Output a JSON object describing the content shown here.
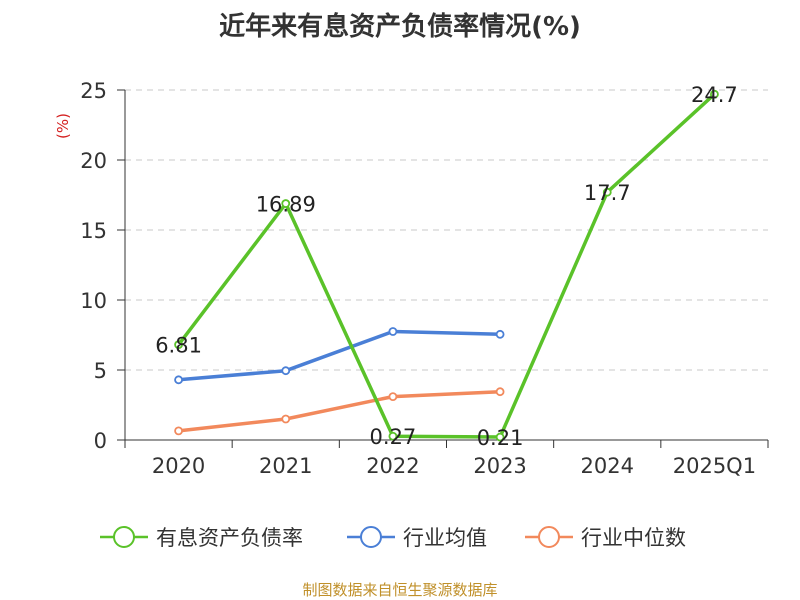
{
  "title": "近年来有息资产负债率情况(%)",
  "source": "制图数据来自恒生聚源数据库",
  "chart_data": {
    "type": "line",
    "title": "近年来有息资产负债率情况(%)",
    "ylabel": "(%)",
    "xlabel": "",
    "categories": [
      "2020",
      "2021",
      "2022",
      "2023",
      "2024",
      "2025Q1"
    ],
    "ylim": [
      0,
      25
    ],
    "yticks": [
      0,
      5,
      10,
      15,
      20,
      25
    ],
    "grid": true,
    "legend_position": "bottom",
    "series": [
      {
        "name": "有息资产负债率",
        "color": "#5ac229",
        "values": [
          6.81,
          16.89,
          0.27,
          0.21,
          17.7,
          24.7
        ],
        "labels": [
          "6.81",
          "16.89",
          "0.27",
          "0.21",
          "17.7",
          "24.7"
        ]
      },
      {
        "name": "行业均值",
        "color": "#4a7fd6",
        "values": [
          4.3,
          4.95,
          7.75,
          7.55,
          null,
          null
        ]
      },
      {
        "name": "行业中位数",
        "color": "#f2895c",
        "values": [
          0.65,
          1.5,
          3.1,
          3.45,
          null,
          null
        ]
      }
    ]
  }
}
